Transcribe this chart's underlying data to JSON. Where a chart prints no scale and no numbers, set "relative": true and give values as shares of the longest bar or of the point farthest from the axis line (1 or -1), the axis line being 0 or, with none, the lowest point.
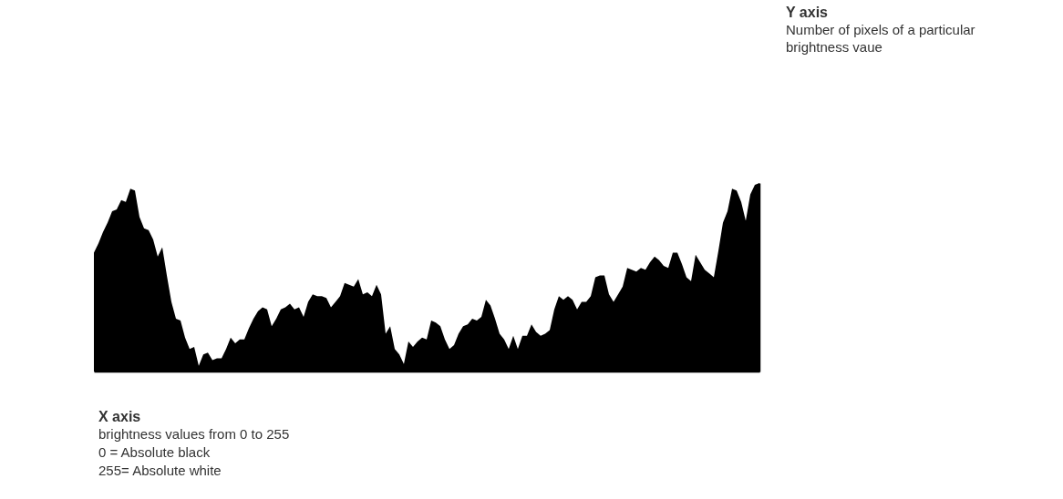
{
  "chart_data": {
    "type": "area",
    "relative": true,
    "color": "#000000",
    "grid": false,
    "annotations": [
      "Y axis",
      "Number of pixels of a particular brightness vaue",
      "X axis",
      "brightness values from 0 to 255",
      "0 = Absolute black",
      "255= Absolute white"
    ],
    "categories": [
      null,
      null,
      null,
      null,
      null,
      null,
      null,
      null,
      null,
      null,
      null,
      null,
      null,
      null,
      null,
      null,
      null,
      null,
      null,
      null,
      null,
      null,
      null,
      null,
      null,
      null,
      null,
      null,
      null,
      null,
      null,
      null,
      null,
      null,
      null,
      null,
      null,
      null,
      null,
      null,
      null,
      null,
      null,
      null,
      null,
      null,
      null,
      null,
      null,
      null,
      null,
      null,
      null,
      null,
      null,
      null,
      null,
      null,
      null,
      null,
      null,
      null,
      null,
      null,
      null,
      null,
      null,
      null,
      null,
      null,
      null,
      null,
      null,
      null,
      null,
      null,
      null,
      null,
      null,
      null,
      null,
      null,
      null,
      null,
      null,
      null,
      null,
      null,
      null,
      null,
      null,
      null,
      null,
      null,
      null,
      null,
      null,
      null,
      null,
      null,
      null,
      null,
      null,
      null,
      null,
      null,
      null,
      null,
      null,
      null,
      null,
      null,
      null,
      null,
      null,
      null,
      null,
      null,
      null,
      null,
      null,
      null,
      null,
      null,
      null,
      null,
      null,
      null,
      null,
      null,
      null,
      null,
      null,
      null,
      null,
      null,
      null,
      null,
      null,
      null,
      null,
      null,
      null,
      null,
      null,
      null,
      null
    ],
    "values": [
      0.63,
      0.68,
      0.74,
      0.79,
      0.85,
      0.86,
      0.91,
      0.9,
      0.97,
      0.96,
      0.82,
      0.76,
      0.75,
      0.7,
      0.61,
      0.66,
      0.51,
      0.37,
      0.28,
      0.27,
      0.18,
      0.12,
      0.13,
      0.03,
      0.09,
      0.1,
      0.06,
      0.07,
      0.07,
      0.12,
      0.18,
      0.15,
      0.17,
      0.17,
      0.23,
      0.28,
      0.32,
      0.34,
      0.33,
      0.24,
      0.28,
      0.33,
      0.34,
      0.36,
      0.33,
      0.34,
      0.29,
      0.37,
      0.41,
      0.4,
      0.4,
      0.39,
      0.34,
      0.37,
      0.4,
      0.47,
      0.46,
      0.45,
      0.49,
      0.41,
      0.42,
      0.4,
      0.46,
      0.41,
      0.2,
      0.24,
      0.12,
      0.09,
      0.04,
      0.16,
      0.13,
      0.16,
      0.18,
      0.17,
      0.27,
      0.26,
      0.24,
      0.17,
      0.12,
      0.14,
      0.2,
      0.24,
      0.25,
      0.28,
      0.27,
      0.29,
      0.38,
      0.35,
      0.28,
      0.2,
      0.17,
      0.12,
      0.19,
      0.12,
      0.19,
      0.19,
      0.25,
      0.21,
      0.19,
      0.2,
      0.22,
      0.33,
      0.4,
      0.38,
      0.4,
      0.38,
      0.33,
      0.37,
      0.37,
      0.4,
      0.5,
      0.51,
      0.51,
      0.41,
      0.37,
      0.41,
      0.45,
      0.55,
      0.54,
      0.53,
      0.55,
      0.54,
      0.58,
      0.61,
      0.59,
      0.56,
      0.55,
      0.63,
      0.63,
      0.57,
      0.5,
      0.48,
      0.62,
      0.58,
      0.54,
      0.52,
      0.5,
      0.64,
      0.79,
      0.85,
      0.97,
      0.96,
      0.9,
      0.8,
      0.94,
      0.99,
      1.0
    ]
  }
}
